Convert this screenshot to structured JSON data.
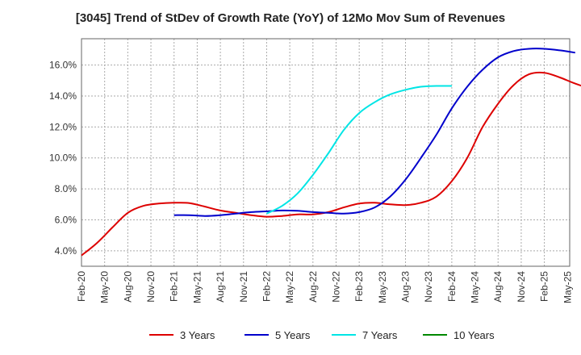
{
  "chart_data": {
    "type": "line",
    "title": "[3045]  Trend of StDev of Growth Rate (YoY) of 12Mo Mov Sum of Revenues",
    "xlabel": "",
    "ylabel": "",
    "ylim": [
      3.0,
      17.7
    ],
    "yticks": [
      4.0,
      6.0,
      8.0,
      10.0,
      12.0,
      14.0,
      16.0
    ],
    "ytick_labels": [
      "4.0%",
      "6.0%",
      "8.0%",
      "10.0%",
      "12.0%",
      "14.0%",
      "16.0%"
    ],
    "x_categories": [
      "Feb-20",
      "May-20",
      "Aug-20",
      "Nov-20",
      "Feb-21",
      "May-21",
      "Aug-21",
      "Nov-21",
      "Feb-22",
      "May-22",
      "Aug-22",
      "Nov-22",
      "Feb-23",
      "May-23",
      "Aug-23",
      "Nov-23",
      "Feb-24",
      "May-24",
      "Aug-24",
      "Nov-24",
      "Feb-25",
      "May-25"
    ],
    "grid": true,
    "legend_position": "bottom",
    "series": [
      {
        "name": "3 Years",
        "color": "#dd0000",
        "x_start": 0,
        "values": [
          3.7,
          4.5,
          5.5,
          6.45,
          6.9,
          7.05,
          7.1,
          7.08,
          6.85,
          6.6,
          6.45,
          6.3,
          6.2,
          6.25,
          6.35,
          6.35,
          6.5,
          6.8,
          7.05,
          7.1,
          7.0,
          6.95,
          7.1,
          7.5,
          8.5,
          10.0,
          12.0,
          13.5,
          14.7,
          15.4,
          15.5,
          15.2,
          14.8,
          14.5,
          14.45
        ]
      },
      {
        "name": "5 Years",
        "color": "#0000cc",
        "x_start": 12,
        "values": [
          6.3,
          6.3,
          6.25,
          6.3,
          6.4,
          6.5,
          6.55,
          6.6,
          6.58,
          6.5,
          6.45,
          6.4,
          6.5,
          6.8,
          7.5,
          8.6,
          10.0,
          11.5,
          13.2,
          14.6,
          15.7,
          16.5,
          16.9,
          17.05,
          17.05,
          16.95,
          16.8
        ]
      },
      {
        "name": "7 Years",
        "color": "#00e5e5",
        "x_start": 24,
        "values": [
          6.4,
          6.9,
          7.7,
          8.9,
          10.3,
          11.8,
          12.9,
          13.6,
          14.1,
          14.4,
          14.6,
          14.65,
          14.65
        ]
      },
      {
        "name": "10 Years",
        "color": "#008800",
        "x_start": 0,
        "values": []
      }
    ]
  }
}
